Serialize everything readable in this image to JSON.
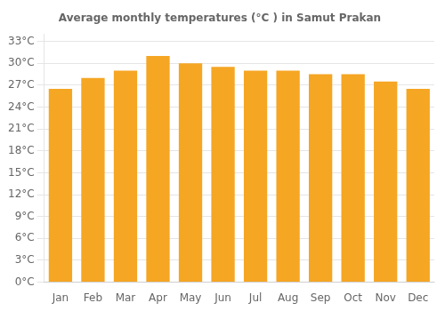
{
  "chart_data": {
    "type": "bar",
    "title": "Average monthly temperatures (°C ) in Samut Prakan",
    "categories": [
      "Jan",
      "Feb",
      "Mar",
      "Apr",
      "May",
      "Jun",
      "Jul",
      "Aug",
      "Sep",
      "Oct",
      "Nov",
      "Dec"
    ],
    "values": [
      26.5,
      28.0,
      29.0,
      31.0,
      30.0,
      29.5,
      29.0,
      29.0,
      28.5,
      28.5,
      27.5,
      26.5
    ],
    "color": "#F5A623",
    "ylim": [
      0,
      34
    ],
    "yticks": [
      {
        "value": 0,
        "label": "0°C"
      },
      {
        "value": 3,
        "label": "3°C"
      },
      {
        "value": 6,
        "label": "6°C"
      },
      {
        "value": 9,
        "label": "9°C"
      },
      {
        "value": 12,
        "label": "12°C"
      },
      {
        "value": 15,
        "label": "15°C"
      },
      {
        "value": 18,
        "label": "18°C"
      },
      {
        "value": 21,
        "label": "21°C"
      },
      {
        "value": 24,
        "label": "24°C"
      },
      {
        "value": 27,
        "label": "27°C"
      },
      {
        "value": 30,
        "label": "30°C"
      },
      {
        "value": 33,
        "label": "33°C"
      }
    ],
    "grid": true
  }
}
